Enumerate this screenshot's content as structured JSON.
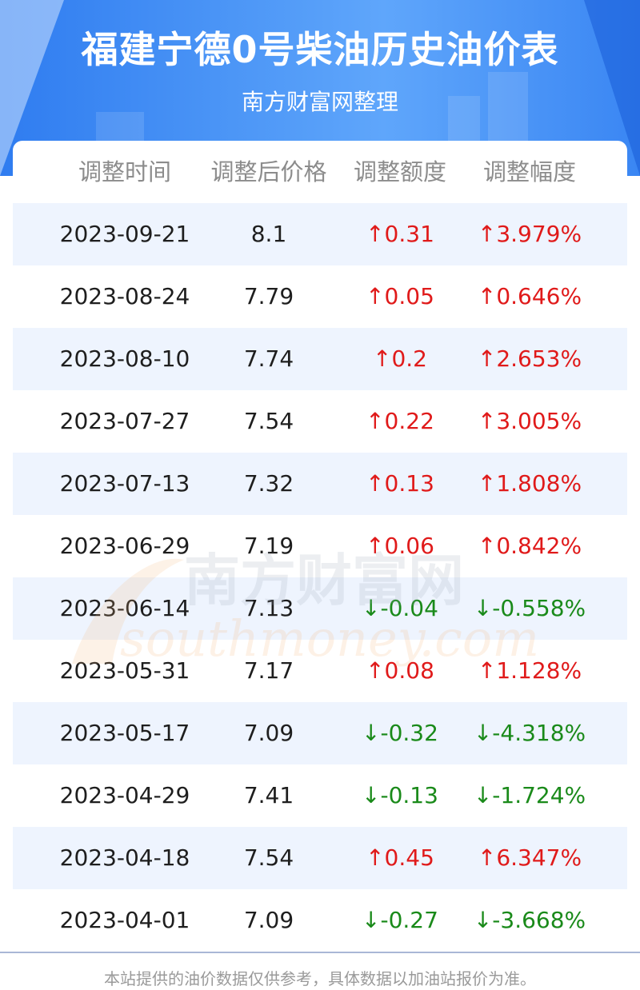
{
  "header": {
    "title": "福建宁德0号柴油历史油价表",
    "subtitle": "南方财富网整理"
  },
  "table": {
    "columns": [
      "调整时间",
      "调整后价格",
      "调整额度",
      "调整幅度"
    ],
    "rows": [
      {
        "date": "2023-09-21",
        "price": "8.1",
        "amount": "↑0.31",
        "percent": "↑3.979%",
        "dir": "up"
      },
      {
        "date": "2023-08-24",
        "price": "7.79",
        "amount": "↑0.05",
        "percent": "↑0.646%",
        "dir": "up"
      },
      {
        "date": "2023-08-10",
        "price": "7.74",
        "amount": "↑0.2",
        "percent": "↑2.653%",
        "dir": "up"
      },
      {
        "date": "2023-07-27",
        "price": "7.54",
        "amount": "↑0.22",
        "percent": "↑3.005%",
        "dir": "up"
      },
      {
        "date": "2023-07-13",
        "price": "7.32",
        "amount": "↑0.13",
        "percent": "↑1.808%",
        "dir": "up"
      },
      {
        "date": "2023-06-29",
        "price": "7.19",
        "amount": "↑0.06",
        "percent": "↑0.842%",
        "dir": "up"
      },
      {
        "date": "2023-06-14",
        "price": "7.13",
        "amount": "↓-0.04",
        "percent": "↓-0.558%",
        "dir": "down"
      },
      {
        "date": "2023-05-31",
        "price": "7.17",
        "amount": "↑0.08",
        "percent": "↑1.128%",
        "dir": "up"
      },
      {
        "date": "2023-05-17",
        "price": "7.09",
        "amount": "↓-0.32",
        "percent": "↓-4.318%",
        "dir": "down"
      },
      {
        "date": "2023-04-29",
        "price": "7.41",
        "amount": "↓-0.13",
        "percent": "↓-1.724%",
        "dir": "down"
      },
      {
        "date": "2023-04-18",
        "price": "7.54",
        "amount": "↑0.45",
        "percent": "↑6.347%",
        "dir": "up"
      },
      {
        "date": "2023-04-01",
        "price": "7.09",
        "amount": "↓-0.27",
        "percent": "↓-3.668%",
        "dir": "down"
      }
    ]
  },
  "watermark": {
    "cn": "南方财富网",
    "en": "southmoney.com"
  },
  "footer": {
    "note": "本站提供的油价数据仅供参考，具体数据以加油站报价为准。"
  },
  "colors": {
    "up": "#e01a1a",
    "down": "#1a8a1a",
    "header_blue": "#3a86f3",
    "row_alt": "#eef4fe"
  }
}
